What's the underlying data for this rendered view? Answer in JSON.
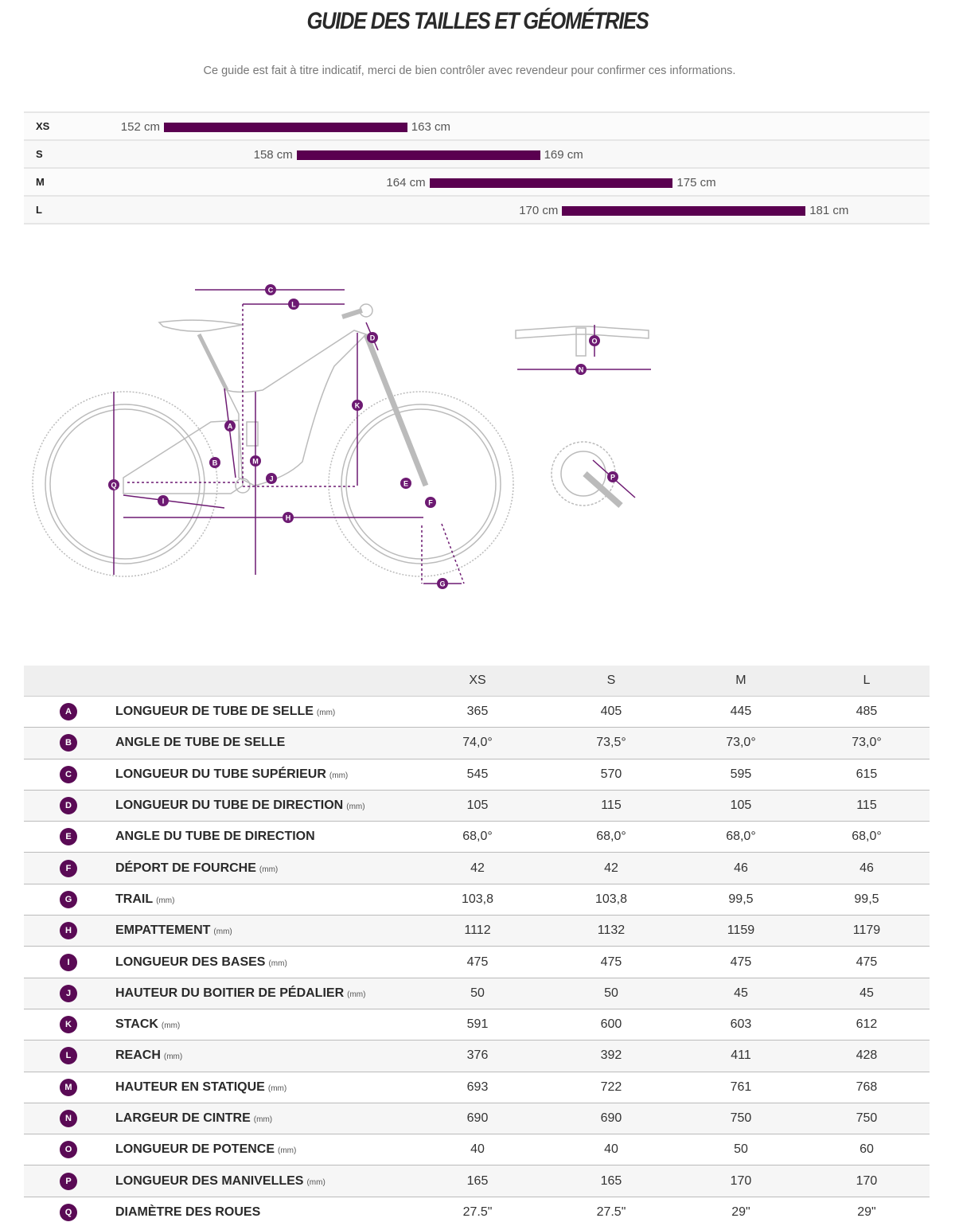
{
  "title": "GUIDE DES TAILLES ET GÉOMÉTRIES",
  "subtitle": "Ce guide est fait à titre indicatif, merci de bien contrôler avec revendeur pour confirmer ces informations.",
  "colors": {
    "bar": "#5a0050",
    "badge": "#5a0a55",
    "diagram_marker": "#6d1a72"
  },
  "size_chart": [
    {
      "size": "XS",
      "min": 152,
      "max": 163,
      "min_label": "152 cm",
      "max_label": "163 cm"
    },
    {
      "size": "S",
      "min": 158,
      "max": 169,
      "min_label": "158 cm",
      "max_label": "169 cm"
    },
    {
      "size": "M",
      "min": 164,
      "max": 175,
      "min_label": "164 cm",
      "max_label": "175 cm"
    },
    {
      "size": "L",
      "min": 170,
      "max": 181,
      "min_label": "170 cm",
      "max_label": "181 cm"
    }
  ],
  "diagram": {
    "markers": [
      "A",
      "B",
      "C",
      "D",
      "E",
      "F",
      "G",
      "H",
      "I",
      "J",
      "K",
      "L",
      "M",
      "N",
      "O",
      "P",
      "Q"
    ]
  },
  "geometry": {
    "columns": [
      "XS",
      "S",
      "M",
      "L"
    ],
    "rows": [
      {
        "key": "A",
        "label": "LONGUEUR DE TUBE DE SELLE",
        "unit": "(mm)",
        "values": [
          "365",
          "405",
          "445",
          "485"
        ]
      },
      {
        "key": "B",
        "label": "ANGLE DE TUBE DE SELLE",
        "unit": "",
        "values": [
          "74,0°",
          "73,5°",
          "73,0°",
          "73,0°"
        ]
      },
      {
        "key": "C",
        "label": "LONGUEUR DU TUBE SUPÉRIEUR",
        "unit": "(mm)",
        "values": [
          "545",
          "570",
          "595",
          "615"
        ]
      },
      {
        "key": "D",
        "label": "LONGUEUR DU TUBE DE DIRECTION",
        "unit": "(mm)",
        "values": [
          "105",
          "115",
          "105",
          "115"
        ]
      },
      {
        "key": "E",
        "label": "ANGLE DU TUBE DE DIRECTION",
        "unit": "",
        "values": [
          "68,0°",
          "68,0°",
          "68,0°",
          "68,0°"
        ]
      },
      {
        "key": "F",
        "label": "DÉPORT DE FOURCHE",
        "unit": "(mm)",
        "values": [
          "42",
          "42",
          "46",
          "46"
        ]
      },
      {
        "key": "G",
        "label": "TRAIL",
        "unit": "(mm)",
        "values": [
          "103,8",
          "103,8",
          "99,5",
          "99,5"
        ]
      },
      {
        "key": "H",
        "label": "EMPATTEMENT",
        "unit": "(mm)",
        "values": [
          "1112",
          "1132",
          "1159",
          "1179"
        ]
      },
      {
        "key": "I",
        "label": "LONGUEUR DES BASES",
        "unit": "(mm)",
        "values": [
          "475",
          "475",
          "475",
          "475"
        ]
      },
      {
        "key": "J",
        "label": "HAUTEUR DU BOITIER DE PÉDALIER",
        "unit": "(mm)",
        "values": [
          "50",
          "50",
          "45",
          "45"
        ]
      },
      {
        "key": "K",
        "label": "STACK",
        "unit": "(mm)",
        "values": [
          "591",
          "600",
          "603",
          "612"
        ]
      },
      {
        "key": "L",
        "label": "REACH",
        "unit": "(mm)",
        "values": [
          "376",
          "392",
          "411",
          "428"
        ]
      },
      {
        "key": "M",
        "label": "HAUTEUR EN STATIQUE",
        "unit": "(mm)",
        "values": [
          "693",
          "722",
          "761",
          "768"
        ]
      },
      {
        "key": "N",
        "label": "LARGEUR DE CINTRE",
        "unit": "(mm)",
        "values": [
          "690",
          "690",
          "750",
          "750"
        ]
      },
      {
        "key": "O",
        "label": "LONGUEUR DE POTENCE",
        "unit": "(mm)",
        "values": [
          "40",
          "40",
          "50",
          "60"
        ]
      },
      {
        "key": "P",
        "label": "LONGUEUR DES MANIVELLES",
        "unit": "(mm)",
        "values": [
          "165",
          "165",
          "170",
          "170"
        ]
      },
      {
        "key": "Q",
        "label": "DIAMÈTRE DES ROUES",
        "unit": "",
        "values": [
          "27.5\"",
          "27.5\"",
          "29\"",
          "29\""
        ]
      }
    ]
  }
}
